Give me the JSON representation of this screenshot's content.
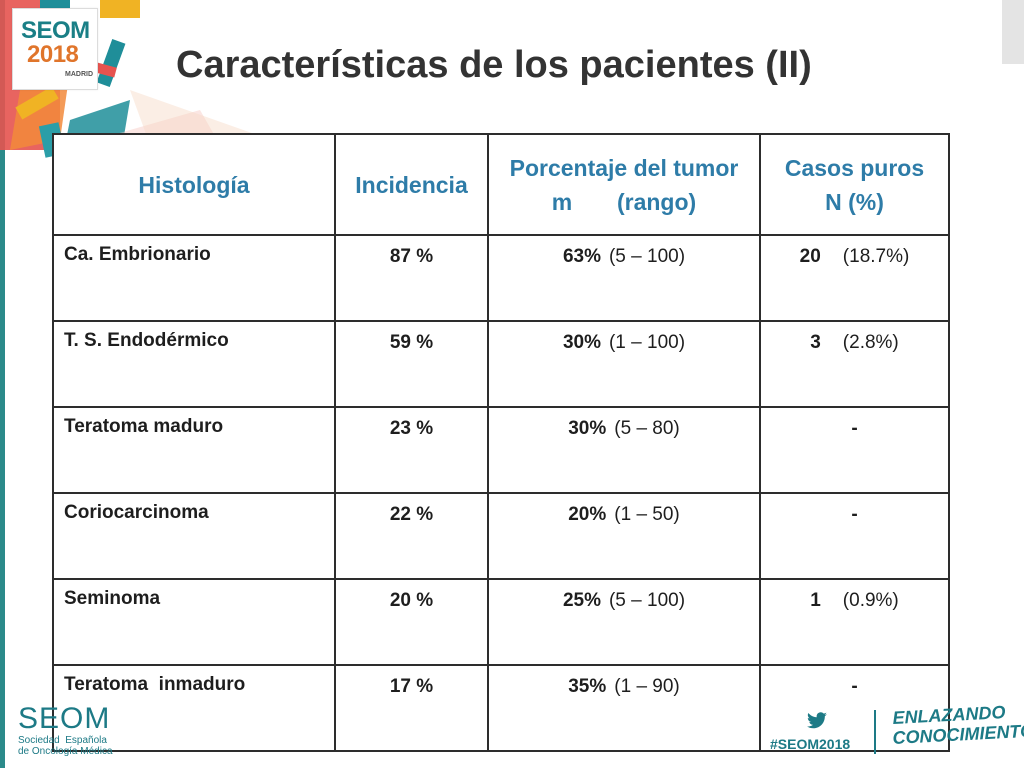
{
  "logo": {
    "line1": "SEOM",
    "line2": "2018",
    "line3": "MADRID"
  },
  "title": "Características de los pacientes (II)",
  "table": {
    "headers": [
      "Histología",
      "Incidencia",
      "Porcentaje del tumor",
      "m       (rango)",
      "Casos puros",
      "N (%)"
    ],
    "rows": [
      {
        "name": "Ca. Embrionario",
        "incidencia": "87 %",
        "pct": "63%",
        "rango": "(5 – 100)",
        "casos_n": "20",
        "casos_pct": "(18.7%)"
      },
      {
        "name": "T. S. Endodérmico",
        "incidencia": "59 %",
        "pct": "30%",
        "rango": "(1 – 100)",
        "casos_n": "3",
        "casos_pct": "(2.8%)"
      },
      {
        "name": "Teratoma maduro",
        "incidencia": "23 %",
        "pct": "30%",
        "rango": "(5 – 80)",
        "casos_n": "-",
        "casos_pct": ""
      },
      {
        "name": "Coriocarcinoma",
        "incidencia": "22 %",
        "pct": "20%",
        "rango": "(1 – 50)",
        "casos_n": "-",
        "casos_pct": ""
      },
      {
        "name": "Seminoma",
        "incidencia": "20 %",
        "pct": "25%",
        "rango": "(5 – 100)",
        "casos_n": "1",
        "casos_pct": "(0.9%)"
      },
      {
        "name": "Teratoma  inmaduro",
        "incidencia": "17 %",
        "pct": "35%",
        "rango": "(1 – 90)",
        "casos_n": "-",
        "casos_pct": ""
      }
    ]
  },
  "footer": {
    "brand": "SEOM",
    "sub1": "Sociedad  Española",
    "sub2": "de Oncología Médica",
    "hashtag": "#SEOM2018",
    "tagline1": "ENLAZANDO",
    "tagline2": "CONOCIMIENTO",
    "social_icon": "twitter-icon"
  },
  "colors": {
    "teal": "#1d7a86",
    "header_blue": "#2e7ca8",
    "orange": "#e0752b"
  }
}
